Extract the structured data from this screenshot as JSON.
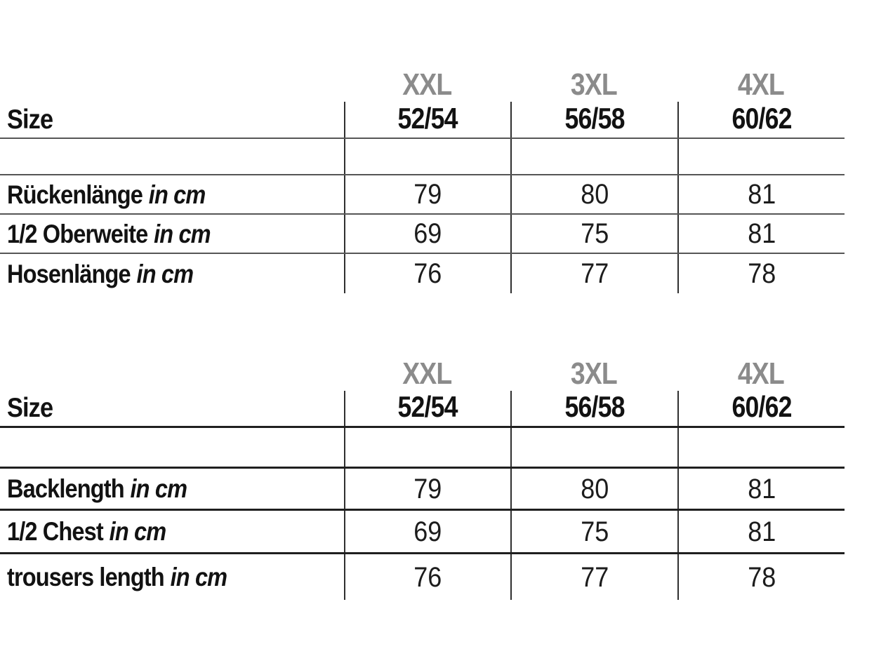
{
  "colors": {
    "background": "#ffffff",
    "size_header_gray": "#8b8b8b",
    "text_black": "#121212",
    "rule_gray": "#565656",
    "rule_dark": "#1f1f1f"
  },
  "tables": [
    {
      "name": "size-table-german",
      "size_label": "Size",
      "columns": [
        {
          "size": "XXL",
          "range": "52/54"
        },
        {
          "size": "3XL",
          "range": "56/58"
        },
        {
          "size": "4XL",
          "range": "60/62"
        }
      ],
      "rows": [
        {
          "label": "Rückenlänge",
          "unit": "in cm",
          "values": [
            "79",
            "80",
            "81"
          ]
        },
        {
          "label": "1/2 Oberweite",
          "unit": "in cm",
          "values": [
            "69",
            "75",
            "81"
          ]
        },
        {
          "label": "Hosenlänge",
          "unit": "in cm",
          "values": [
            "76",
            "77",
            "78"
          ]
        }
      ]
    },
    {
      "name": "size-table-english",
      "size_label": "Size",
      "columns": [
        {
          "size": "XXL",
          "range": "52/54"
        },
        {
          "size": "3XL",
          "range": "56/58"
        },
        {
          "size": "4XL",
          "range": "60/62"
        }
      ],
      "rows": [
        {
          "label": "Backlength",
          "unit": "in cm",
          "values": [
            "79",
            "80",
            "81"
          ]
        },
        {
          "label": "1/2 Chest",
          "unit": "in cm",
          "values": [
            "69",
            "75",
            "81"
          ]
        },
        {
          "label": "trousers length",
          "unit": "in cm",
          "values": [
            "76",
            "77",
            "78"
          ]
        }
      ]
    }
  ],
  "chart_data": [
    {
      "type": "table",
      "title": "",
      "columns": [
        "Size",
        "XXL 52/54",
        "3XL 56/58",
        "4XL 60/62"
      ],
      "rows": [
        [
          "Rückenlänge in cm",
          79,
          80,
          81
        ],
        [
          "1/2 Oberweite in cm",
          69,
          75,
          81
        ],
        [
          "Hosenlänge in cm",
          76,
          77,
          78
        ]
      ]
    },
    {
      "type": "table",
      "title": "",
      "columns": [
        "Size",
        "XXL 52/54",
        "3XL 56/58",
        "4XL 60/62"
      ],
      "rows": [
        [
          "Backlength in cm",
          79,
          80,
          81
        ],
        [
          "1/2 Chest in cm",
          69,
          75,
          81
        ],
        [
          "trousers length in cm",
          76,
          77,
          78
        ]
      ]
    }
  ]
}
